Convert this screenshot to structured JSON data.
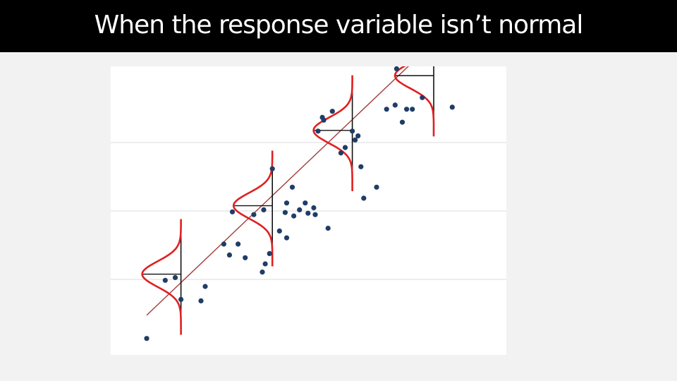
{
  "slide": {
    "title": "When the response variable isn’t normal"
  },
  "colors": {
    "title_bar": "#000000",
    "title_text": "#ffffff",
    "slide_background": "#f2f2f2",
    "figure_background": "#ffffff",
    "gridline": "#e2e2e2",
    "point": "#1f3d66",
    "regression_line": "#a33a3a",
    "density_curve": "#e02020",
    "baseline": "#111111"
  },
  "chart_data": {
    "type": "scatter",
    "grid": "horizontal",
    "regression_line": {
      "x": [
        0.5,
        10.5
      ],
      "y": [
        0.58,
        4.55
      ]
    },
    "points": [
      [
        0.5,
        0.24
      ],
      [
        1.15,
        1.09
      ],
      [
        1.5,
        1.13
      ],
      [
        1.7,
        0.81
      ],
      [
        2.4,
        0.79
      ],
      [
        2.55,
        1.0
      ],
      [
        3.2,
        1.62
      ],
      [
        3.4,
        1.46
      ],
      [
        3.5,
        2.09
      ],
      [
        3.7,
        1.62
      ],
      [
        3.95,
        1.42
      ],
      [
        4.25,
        2.05
      ],
      [
        4.55,
        1.21
      ],
      [
        4.6,
        2.12
      ],
      [
        4.9,
        2.72
      ],
      [
        4.65,
        1.33
      ],
      [
        4.8,
        1.48
      ],
      [
        5.15,
        1.81
      ],
      [
        5.35,
        2.08
      ],
      [
        5.4,
        1.71
      ],
      [
        5.4,
        2.22
      ],
      [
        5.6,
        2.45
      ],
      [
        5.65,
        2.03
      ],
      [
        5.85,
        2.12
      ],
      [
        6.05,
        2.22
      ],
      [
        6.15,
        2.07
      ],
      [
        6.35,
        2.15
      ],
      [
        6.4,
        2.05
      ],
      [
        6.5,
        3.27
      ],
      [
        6.65,
        3.47
      ],
      [
        6.7,
        3.43
      ],
      [
        6.85,
        1.85
      ],
      [
        7.0,
        3.56
      ],
      [
        7.3,
        2.95
      ],
      [
        7.45,
        3.03
      ],
      [
        7.7,
        3.27
      ],
      [
        7.8,
        3.14
      ],
      [
        7.9,
        3.2
      ],
      [
        8.0,
        2.75
      ],
      [
        8.1,
        2.29
      ],
      [
        8.55,
        2.45
      ],
      [
        8.9,
        3.59
      ],
      [
        9.2,
        3.65
      ],
      [
        9.25,
        4.18
      ],
      [
        9.45,
        3.4
      ],
      [
        9.6,
        3.59
      ],
      [
        9.8,
        3.59
      ],
      [
        10.15,
        3.76
      ],
      [
        10.55,
        4.41
      ],
      [
        11.2,
        3.62
      ],
      [
        11.45,
        4.72
      ]
    ],
    "conditional_distributions": [
      {
        "x": 1.7,
        "mean": 1.18
      },
      {
        "x": 4.9,
        "mean": 2.18
      },
      {
        "x": 7.7,
        "mean": 3.28
      },
      {
        "x": 10.55,
        "mean": 4.08
      }
    ]
  }
}
